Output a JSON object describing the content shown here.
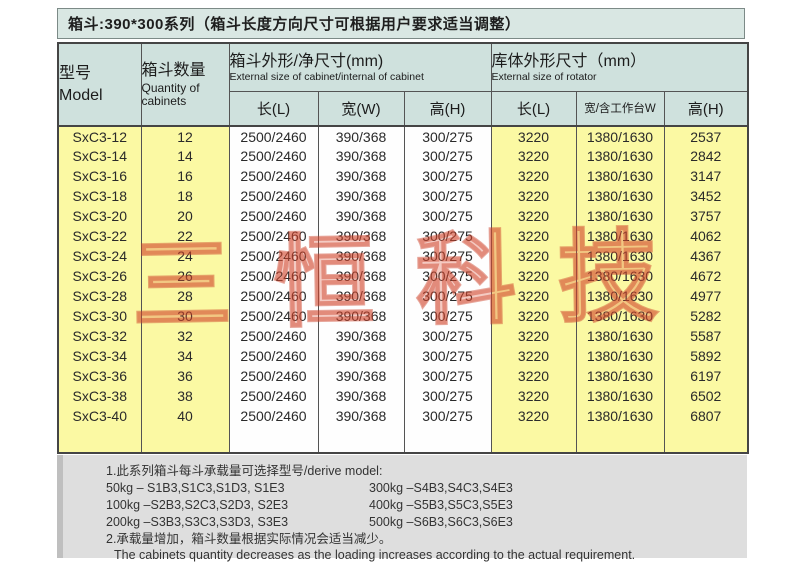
{
  "title": "箱斗:390*300系列（箱斗长度方向尺寸可根据用户要求适当调整）",
  "watermark": {
    "text": "三恒科技"
  },
  "table": {
    "header": {
      "model_cn": "型号",
      "model_en": "Model",
      "qty_cn": "箱斗数量",
      "qty_en": "Quantity of cabinets",
      "cabinet_group_cn": "箱斗外形/净尺寸(mm)",
      "cabinet_group_en": "External size of cabinet/internal of cabinet",
      "rotator_group_cn": "库体外形尺寸（mm）",
      "rotator_group_en": "External size of rotator",
      "sub": [
        "长(L)",
        "宽(W)",
        "高(H)",
        "长(L)",
        "宽/含工作台W",
        "高(H)"
      ]
    },
    "row_keys": [
      "model",
      "qty",
      "cab_l",
      "cab_w",
      "cab_h",
      "rot_l",
      "rot_w",
      "rot_h"
    ],
    "rows": [
      {
        "model": "SxC3-12",
        "qty": "12",
        "cab_l": "2500/2460",
        "cab_w": "390/368",
        "cab_h": "300/275",
        "rot_l": "3220",
        "rot_w": "1380/1630",
        "rot_h": "2537"
      },
      {
        "model": "SxC3-14",
        "qty": "14",
        "cab_l": "2500/2460",
        "cab_w": "390/368",
        "cab_h": "300/275",
        "rot_l": "3220",
        "rot_w": "1380/1630",
        "rot_h": "2842"
      },
      {
        "model": "SxC3-16",
        "qty": "16",
        "cab_l": "2500/2460",
        "cab_w": "390/368",
        "cab_h": "300/275",
        "rot_l": "3220",
        "rot_w": "1380/1630",
        "rot_h": "3147"
      },
      {
        "model": "SxC3-18",
        "qty": "18",
        "cab_l": "2500/2460",
        "cab_w": "390/368",
        "cab_h": "300/275",
        "rot_l": "3220",
        "rot_w": "1380/1630",
        "rot_h": "3452"
      },
      {
        "model": "SxC3-20",
        "qty": "20",
        "cab_l": "2500/2460",
        "cab_w": "390/368",
        "cab_h": "300/275",
        "rot_l": "3220",
        "rot_w": "1380/1630",
        "rot_h": "3757"
      },
      {
        "model": "SxC3-22",
        "qty": "22",
        "cab_l": "2500/2460",
        "cab_w": "390/368",
        "cab_h": "300/275",
        "rot_l": "3220",
        "rot_w": "1380/1630",
        "rot_h": "4062"
      },
      {
        "model": "SxC3-24",
        "qty": "24",
        "cab_l": "2500/2460",
        "cab_w": "390/368",
        "cab_h": "300/275",
        "rot_l": "3220",
        "rot_w": "1380/1630",
        "rot_h": "4367"
      },
      {
        "model": "SxC3-26",
        "qty": "26",
        "cab_l": "2500/2460",
        "cab_w": "390/368",
        "cab_h": "300/275",
        "rot_l": "3220",
        "rot_w": "1380/1630",
        "rot_h": "4672"
      },
      {
        "model": "SxC3-28",
        "qty": "28",
        "cab_l": "2500/2460",
        "cab_w": "390/368",
        "cab_h": "300/275",
        "rot_l": "3220",
        "rot_w": "1380/1630",
        "rot_h": "4977"
      },
      {
        "model": "SxC3-30",
        "qty": "30",
        "cab_l": "2500/2460",
        "cab_w": "390/368",
        "cab_h": "300/275",
        "rot_l": "3220",
        "rot_w": "1380/1630",
        "rot_h": "5282"
      },
      {
        "model": "SxC3-32",
        "qty": "32",
        "cab_l": "2500/2460",
        "cab_w": "390/368",
        "cab_h": "300/275",
        "rot_l": "3220",
        "rot_w": "1380/1630",
        "rot_h": "5587"
      },
      {
        "model": "SxC3-34",
        "qty": "34",
        "cab_l": "2500/2460",
        "cab_w": "390/368",
        "cab_h": "300/275",
        "rot_l": "3220",
        "rot_w": "1380/1630",
        "rot_h": "5892"
      },
      {
        "model": "SxC3-36",
        "qty": "36",
        "cab_l": "2500/2460",
        "cab_w": "390/368",
        "cab_h": "300/275",
        "rot_l": "3220",
        "rot_w": "1380/1630",
        "rot_h": "6197"
      },
      {
        "model": "SxC3-38",
        "qty": "38",
        "cab_l": "2500/2460",
        "cab_w": "390/368",
        "cab_h": "300/275",
        "rot_l": "3220",
        "rot_w": "1380/1630",
        "rot_h": "6502"
      },
      {
        "model": "SxC3-40",
        "qty": "40",
        "cab_l": "2500/2460",
        "cab_w": "390/368",
        "cab_h": "300/275",
        "rot_l": "3220",
        "rot_w": "1380/1630",
        "rot_h": "6807"
      }
    ]
  },
  "notes": {
    "heading": "1.此系列箱斗每斗承载量可选择型号/derive model:",
    "pairs": [
      {
        "left": "50kg – S1B3,S1C3,S1D3, S1E3",
        "right": "300kg –S4B3,S4C3,S4E3"
      },
      {
        "left": "100kg –S2B3,S2C3,S2D3, S2E3",
        "right": "400kg –S5B3,S5C3,S5E3"
      },
      {
        "left": "200kg –S3B3,S3C3,S3D3, S3E3",
        "right": "500kg –S6B3,S6C3,S6E3"
      }
    ],
    "note2_cn": "2.承载量增加，箱斗数量根据实际情况会适当减少。",
    "note2_en": "The cabinets quantity decreases as the loading increases according to the actual requirement."
  },
  "colors": {
    "header_bg": "#cfe1dd",
    "title_bg": "#d9e7e3",
    "yellow_cell": "#fbf9a3",
    "notes_bg": "#dedede",
    "border": "#545454",
    "watermark": "#dd5438"
  }
}
